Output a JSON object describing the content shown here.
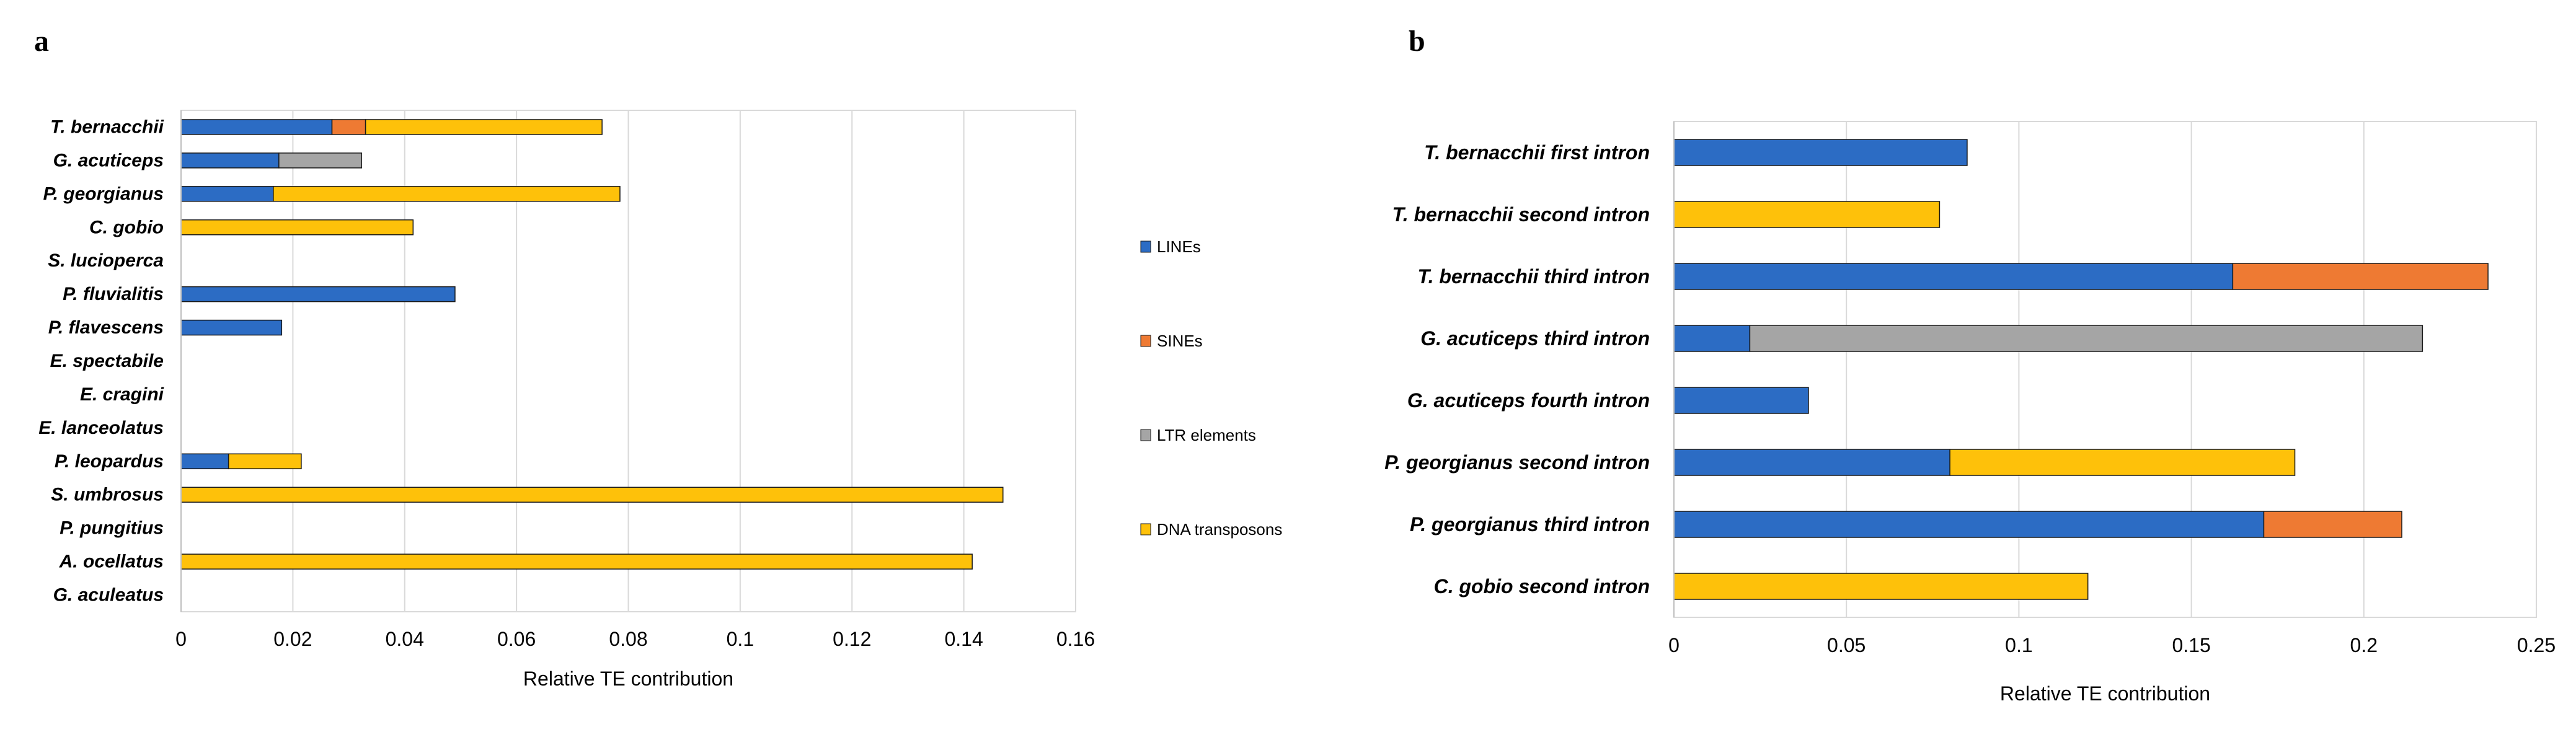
{
  "colors": {
    "LINEs": "#2c6cc4",
    "SINEs": "#ee7a33",
    "LTR elements": "#a5a5a5",
    "DNA transposons": "#fec10a",
    "grid": "#d9d9d9",
    "bar_outline": "#1a1a1a"
  },
  "chart_data": [
    {
      "panel": "a",
      "type": "bar",
      "orientation": "horizontal",
      "stacked": true,
      "xlabel": "Relative TE contribution",
      "xlim": [
        0,
        0.16
      ],
      "xticks": [
        "0",
        "0.02",
        "0.04",
        "0.06",
        "0.08",
        "0.1",
        "0.12",
        "0.14",
        "0.16"
      ],
      "grid": true,
      "legend_position": "right",
      "categories": [
        "T. bernacchii",
        "G. acuticeps",
        "P. georgianus",
        "C. gobio",
        "S. lucioperca",
        "P. fluvialitis",
        "P. flavescens",
        "E. spectabile",
        "E. cragini",
        "E. lanceolatus",
        "P. leopardus",
        "S. umbrosus",
        "P. pungitius",
        "A. ocellatus",
        "G. aculeatus"
      ],
      "series": [
        {
          "name": "LINEs",
          "values": [
            0.027,
            0.0175,
            0.0165,
            0,
            0,
            0.049,
            0.018,
            0,
            0,
            0,
            0.0085,
            0,
            0,
            0,
            0
          ]
        },
        {
          "name": "SINEs",
          "values": [
            0.006,
            0,
            0,
            0,
            0,
            0,
            0,
            0,
            0,
            0,
            0,
            0,
            0,
            0,
            0
          ]
        },
        {
          "name": "LTR elements",
          "values": [
            0,
            0.0148,
            0,
            0,
            0,
            0,
            0,
            0,
            0,
            0,
            0,
            0,
            0,
            0,
            0
          ]
        },
        {
          "name": "DNA transposons",
          "values": [
            0.0423,
            0,
            0.062,
            0.0415,
            0,
            0,
            0,
            0,
            0,
            0,
            0.013,
            0.147,
            0,
            0.1415,
            0
          ]
        }
      ]
    },
    {
      "panel": "b",
      "type": "bar",
      "orientation": "horizontal",
      "stacked": true,
      "xlabel": "Relative TE contribution",
      "xlim": [
        0,
        0.25
      ],
      "xticks": [
        "0",
        "0.05",
        "0.1",
        "0.15",
        "0.2",
        "0.25"
      ],
      "grid": true,
      "legend_position": "none",
      "categories": [
        "T. bernacchii first intron",
        "T. bernacchii second intron",
        "T. bernacchii third intron",
        "G. acuticeps third intron",
        "G. acuticeps fourth intron",
        "P. georgianus second intron",
        "P. georgianus third intron",
        "C. gobio second intron"
      ],
      "series": [
        {
          "name": "LINEs",
          "values": [
            0.085,
            0,
            0.162,
            0.022,
            0.039,
            0.08,
            0.171,
            0
          ]
        },
        {
          "name": "SINEs",
          "values": [
            0,
            0,
            0.074,
            0,
            0,
            0,
            0.04,
            0
          ]
        },
        {
          "name": "LTR elements",
          "values": [
            0,
            0,
            0,
            0.195,
            0,
            0,
            0,
            0
          ]
        },
        {
          "name": "DNA transposons",
          "values": [
            0,
            0.077,
            0,
            0,
            0,
            0.1,
            0,
            0.12
          ]
        }
      ]
    }
  ]
}
